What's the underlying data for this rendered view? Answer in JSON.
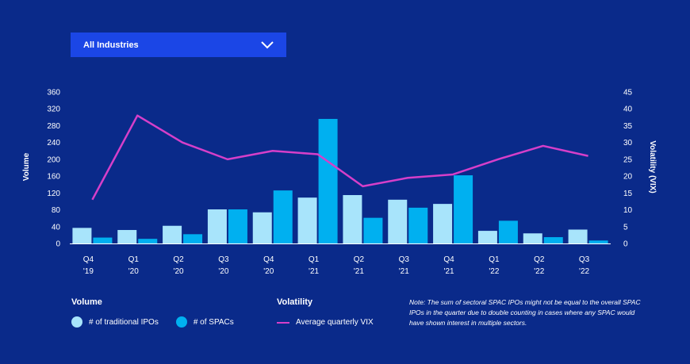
{
  "filter": {
    "selected": "All Industries"
  },
  "colors": {
    "background": "#0a2a8a",
    "traditional": "#a8e4fb",
    "spacs": "#00b0f0",
    "vix": "#d63fc9"
  },
  "chart_data": {
    "type": "bar",
    "title": "",
    "categories": [
      [
        "Q4",
        "'19"
      ],
      [
        "Q1",
        "'20"
      ],
      [
        "Q2",
        "'20"
      ],
      [
        "Q3",
        "'20"
      ],
      [
        "Q4",
        "'20"
      ],
      [
        "Q1",
        "'21"
      ],
      [
        "Q2",
        "'21"
      ],
      [
        "Q3",
        "'21"
      ],
      [
        "Q4",
        "'21"
      ],
      [
        "Q1",
        "'22"
      ],
      [
        "Q2",
        "'22"
      ],
      [
        "Q3",
        "'22"
      ]
    ],
    "ylabel": "Volume",
    "y2label": "Volatility (VIX)",
    "ylim": [
      0,
      360
    ],
    "yticks": [
      0,
      40,
      80,
      120,
      160,
      200,
      240,
      280,
      320,
      360
    ],
    "y2lim": [
      0,
      45
    ],
    "y2ticks": [
      0,
      5,
      10,
      15,
      20,
      25,
      30,
      35,
      40,
      45
    ],
    "series": [
      {
        "name": "# of traditional IPOs",
        "axis": "left",
        "kind": "bar",
        "values": [
          37,
          32,
          42,
          81,
          74,
          109,
          115,
          104,
          94,
          30,
          24,
          33
        ]
      },
      {
        "name": "# of SPACs",
        "axis": "left",
        "kind": "bar",
        "values": [
          14,
          11,
          22,
          81,
          126,
          296,
          61,
          85,
          162,
          54,
          15,
          7
        ]
      },
      {
        "name": "Average quarterly VIX",
        "axis": "right",
        "kind": "line",
        "values": [
          13,
          38,
          30,
          25,
          27.5,
          26.5,
          17,
          19.5,
          20.5,
          25,
          29,
          26
        ]
      }
    ]
  },
  "legend": {
    "volume_heading": "Volume",
    "volatility_heading": "Volatility",
    "traditional_label": "# of traditional IPOs",
    "spacs_label": "# of SPACs",
    "vix_label": "Average quarterly VIX"
  },
  "note": "Note: The sum of sectoral SPAC IPOs might not be equal to the overall SPAC IPOs in the quarter due to double counting in cases where any SPAC would have shown interest in multiple sectors."
}
